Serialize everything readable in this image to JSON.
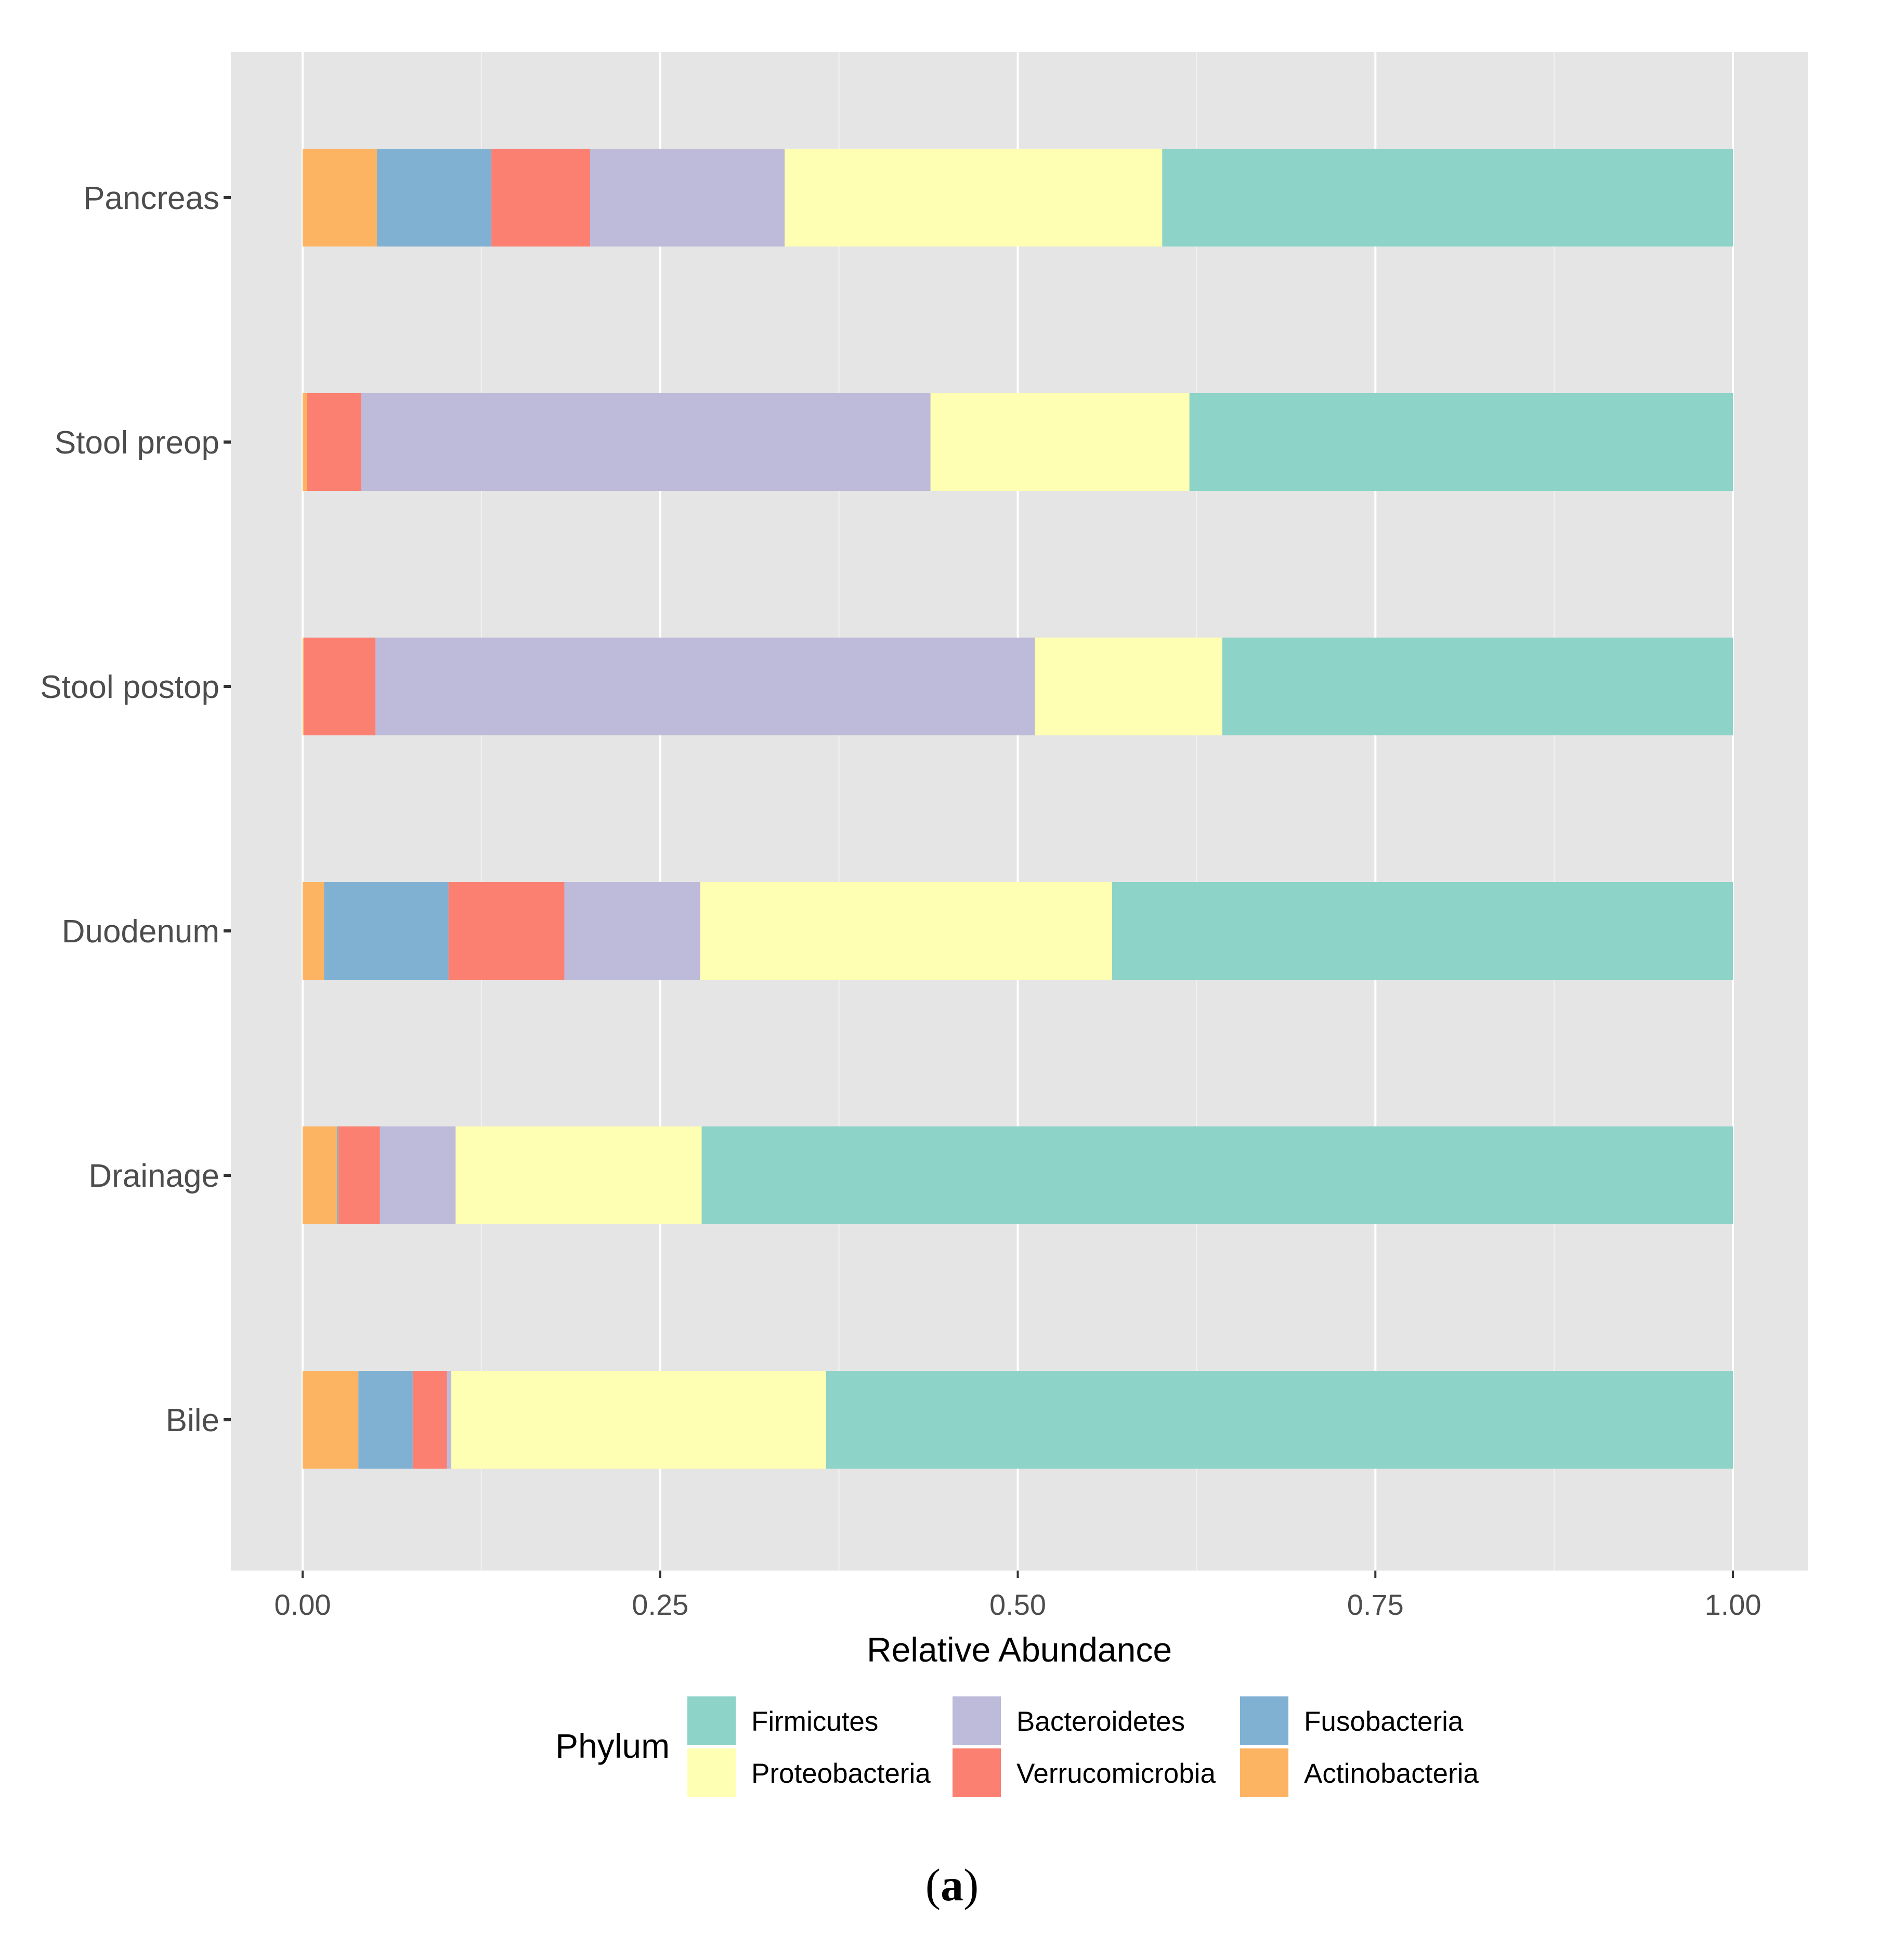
{
  "chart_data": {
    "type": "bar",
    "orientation": "horizontal",
    "stacked": true,
    "title": "",
    "xlabel": "Relative Abundance",
    "ylabel": "",
    "xlim": [
      0,
      1
    ],
    "x_ticks": [
      0,
      0.25,
      0.5,
      0.75,
      1
    ],
    "x_tick_labels": [
      "0.00",
      "0.25",
      "0.50",
      "0.75",
      "1.00"
    ],
    "grid": true,
    "categories": [
      "Pancreas",
      "Stool preop",
      "Stool postop",
      "Duodenum",
      "Drainage",
      "Bile"
    ],
    "series": [
      {
        "name": "Actinobacteria",
        "color": "#FDB462",
        "values": [
          0.052,
          0.003,
          0.001,
          0.015,
          0.024,
          0.039
        ]
      },
      {
        "name": "Fusobacteria",
        "color": "#80B1D3",
        "values": [
          0.08,
          0.0,
          0.0,
          0.087,
          0.001,
          0.038
        ]
      },
      {
        "name": "Verrucomicrobia",
        "color": "#FB8072",
        "values": [
          0.069,
          0.038,
          0.05,
          0.081,
          0.029,
          0.024
        ]
      },
      {
        "name": "Bacteroidetes",
        "color": "#BEBADA",
        "values": [
          0.136,
          0.398,
          0.461,
          0.095,
          0.053,
          0.003
        ]
      },
      {
        "name": "Proteobacteria",
        "color": "#FFFFB3",
        "values": [
          0.264,
          0.181,
          0.131,
          0.288,
          0.172,
          0.262
        ]
      },
      {
        "name": "Firmicutes",
        "color": "#8DD3C7",
        "values": [
          0.399,
          0.38,
          0.357,
          0.434,
          0.721,
          0.634
        ]
      }
    ],
    "legend": {
      "title": "Phylum",
      "position": "bottom",
      "items": [
        "Firmicutes",
        "Proteobacteria",
        "Bacteroidetes",
        "Verrucomicrobia",
        "Fusobacteria",
        "Actinobacteria"
      ]
    }
  },
  "caption": {
    "open": "(",
    "label": "a",
    "close": ")"
  }
}
